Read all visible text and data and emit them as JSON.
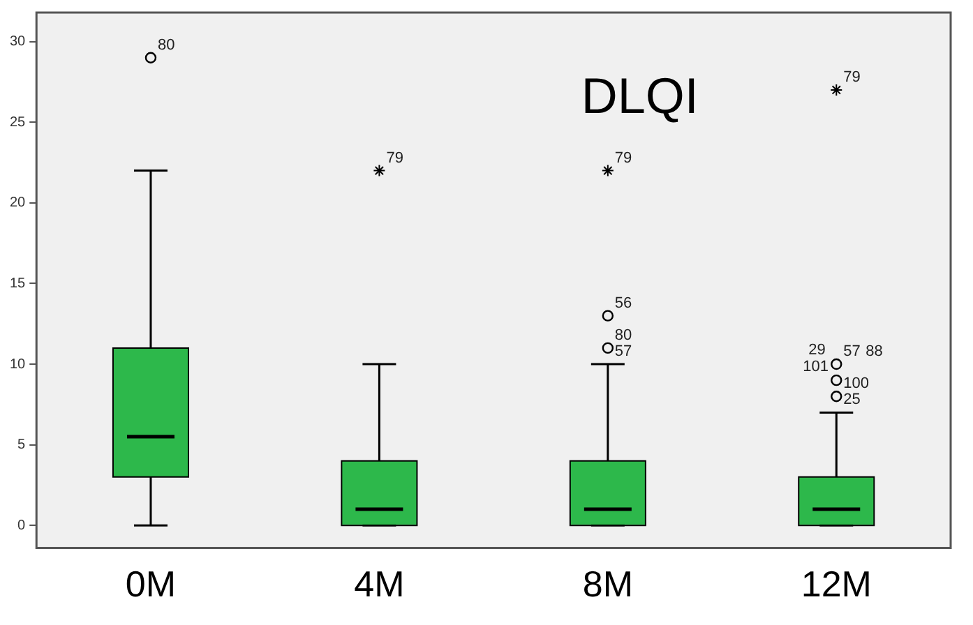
{
  "chart_data": {
    "type": "box",
    "title": "DLQI",
    "categories": [
      "0M",
      "4M",
      "8M",
      "12M"
    ],
    "ylim": [
      -1.4,
      31.8
    ],
    "yticks": [
      0,
      5,
      10,
      15,
      20,
      25,
      30
    ],
    "legend": false,
    "series": [
      {
        "color": "#2db84b",
        "boxes": [
          {
            "low": 0,
            "q1": 3,
            "median": 5.5,
            "q3": 11,
            "high": 22
          },
          {
            "low": 0,
            "q1": 0,
            "median": 1,
            "q3": 4,
            "high": 10
          },
          {
            "low": 0,
            "q1": 0,
            "median": 1,
            "q3": 4,
            "high": 10
          },
          {
            "low": 0,
            "q1": 0,
            "median": 1,
            "q3": 3,
            "high": 7
          }
        ]
      },
      {
        "type": "scatter",
        "x": [
          "0M",
          "8M",
          "8M",
          "12M",
          "12M",
          "12M"
        ],
        "values": [
          29,
          11,
          13,
          10,
          9,
          8
        ],
        "marker": "circle",
        "color": "#000000"
      },
      {
        "type": "scatter",
        "x": [
          "4M",
          "8M",
          "12M"
        ],
        "values": [
          22,
          22,
          27
        ],
        "marker": "cross",
        "color": "#000000"
      }
    ],
    "annotations": [
      {
        "text": "80",
        "x": "0M",
        "y": 29
      },
      {
        "text": "79",
        "x": "4M",
        "y": 22
      },
      {
        "text": "79",
        "x": "8M",
        "y": 22
      },
      {
        "text": "56",
        "x": "8M",
        "y": 13
      },
      {
        "text": "80",
        "x": "8M",
        "y": 11
      },
      {
        "text": "57",
        "x": "8M",
        "y": 10
      },
      {
        "text": "79",
        "x": "12M",
        "y": 27
      },
      {
        "text": "57",
        "x": "12M",
        "y": 10
      },
      {
        "text": "88",
        "x": "12M",
        "y": 10
      },
      {
        "text": "29",
        "x": "12M",
        "y": 10
      },
      {
        "text": "101",
        "x": "12M",
        "y": 10
      },
      {
        "text": "100",
        "x": "12M",
        "y": 8
      },
      {
        "text": "25",
        "x": "12M",
        "y": 7
      }
    ]
  }
}
